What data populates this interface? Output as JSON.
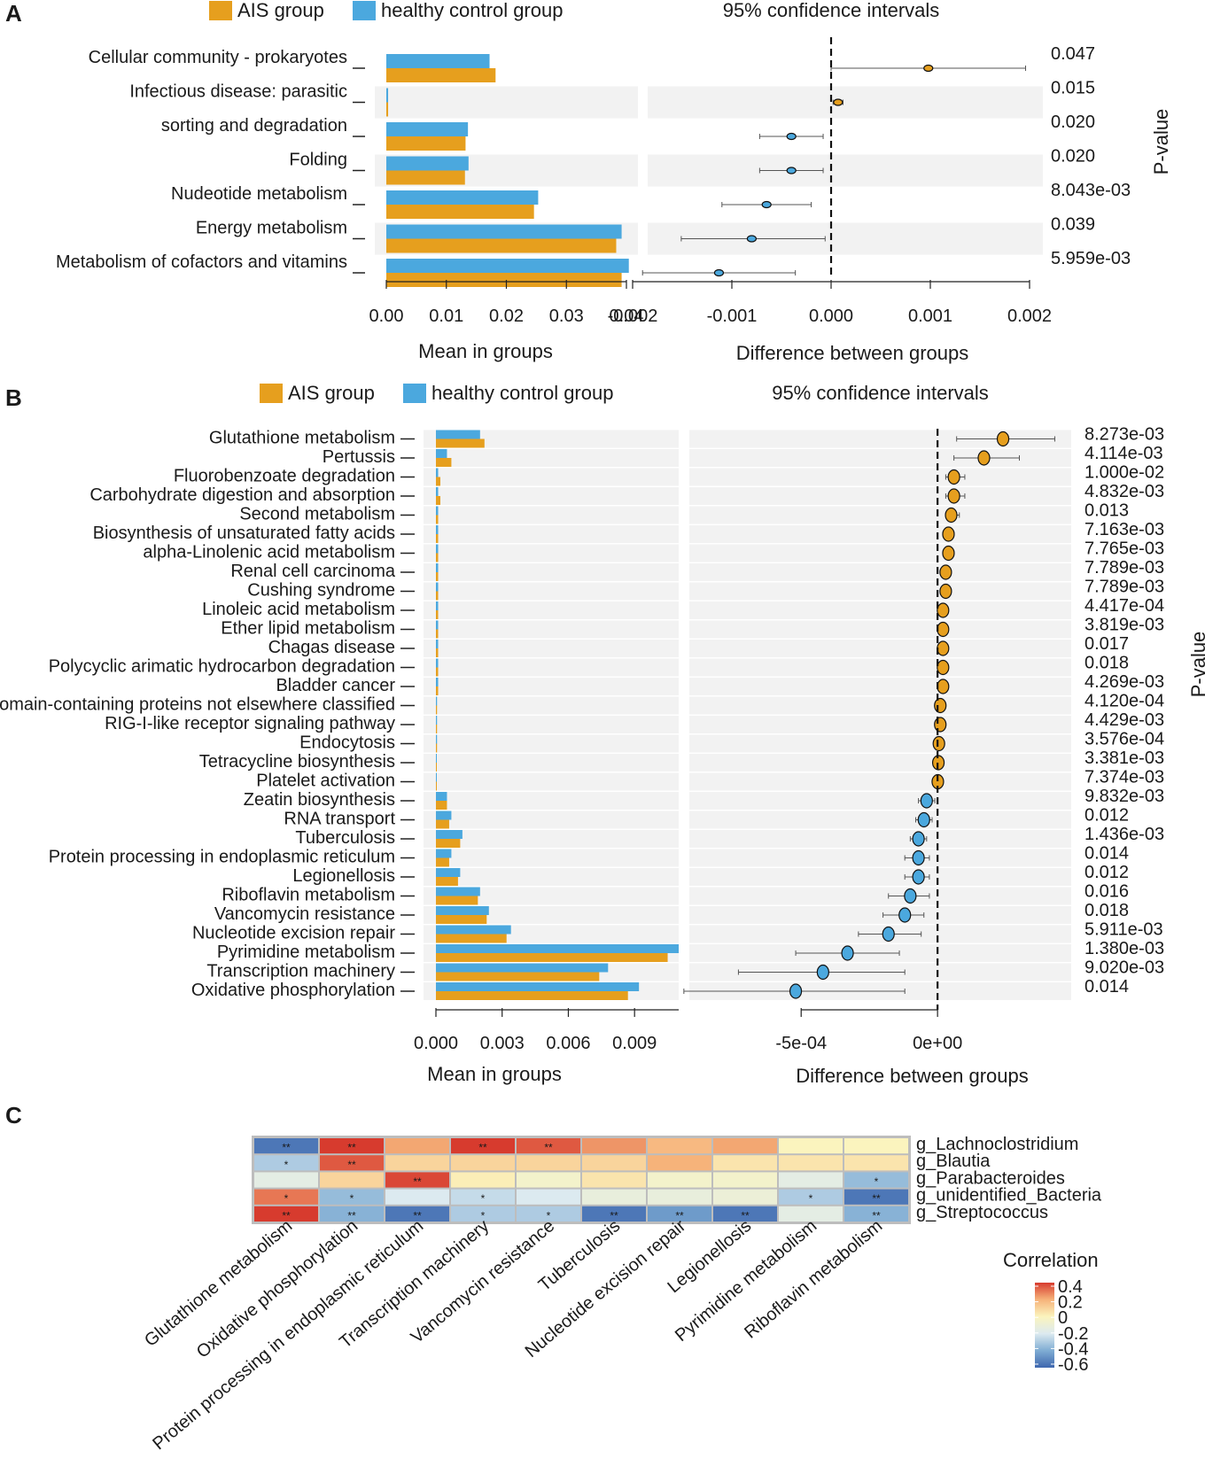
{
  "colors": {
    "ais": "#E69F1E",
    "hc": "#4BA8DE",
    "band": "#F2F2F2",
    "heat_scale": [
      "#3D66AE",
      "#7FACD3",
      "#DCEAF0",
      "#FBF4BE",
      "#F6B37A",
      "#D73B2E"
    ]
  },
  "panels": {
    "a": {
      "letter": "A"
    },
    "b": {
      "letter": "B"
    },
    "c": {
      "letter": "C"
    }
  },
  "chart_data": [
    {
      "id": "A",
      "type": "bar",
      "title": "95% confidence intervals",
      "legend": [
        "AIS group",
        "healthy control group"
      ],
      "legend_position": "top-left",
      "categories": [
        "Cellular community - prokaryotes",
        "Infectious disease: parasitic",
        "sorting and degradation",
        "Folding",
        "Nudeotide metabolism",
        "Energy metabolism",
        "Metabolism of cofactors and vitamins"
      ],
      "series": [
        {
          "name": "healthy control group",
          "values": [
            0.0172,
            0.0003,
            0.0136,
            0.0137,
            0.0253,
            0.0392,
            0.0404
          ]
        },
        {
          "name": "AIS group",
          "values": [
            0.0182,
            0.0003,
            0.0132,
            0.0131,
            0.0246,
            0.0383,
            0.0392
          ]
        }
      ],
      "xlabel": "Mean in groups",
      "xlim": [
        0,
        0.04
      ],
      "xticks": [
        "0.00",
        "0.01",
        "0.02",
        "0.03",
        "0.04"
      ],
      "diff": {
        "values": [
          0.00098,
          7e-05,
          -0.0004,
          -0.0004,
          -0.00065,
          -0.0008,
          -0.00113
        ],
        "lower": [
          0.0,
          2e-05,
          -0.00072,
          -0.00072,
          -0.0011,
          -0.00151,
          -0.0019
        ],
        "upper": [
          0.00196,
          0.00012,
          -8e-05,
          -8e-05,
          -0.0002,
          -6e-05,
          -0.00036
        ],
        "xlabel": "Difference between groups",
        "xlim": [
          -0.002,
          0.002
        ],
        "ticks": [
          -0.002,
          -0.001,
          0,
          0.001,
          0.002
        ],
        "tick_labels": [
          "-0.002",
          "-0.001",
          "0.000",
          "0.001",
          "0.002"
        ]
      },
      "p_values": [
        "0.047",
        "0.015",
        "0.020",
        "0.020",
        "8.043e-03",
        "0.039",
        "5.959e-03"
      ],
      "p_label": "P-value"
    },
    {
      "id": "B",
      "type": "bar",
      "title": "95% confidence intervals",
      "legend": [
        "AIS group",
        "healthy control group"
      ],
      "legend_position": "top-left",
      "categories": [
        "Glutathione metabolism",
        "Pertussis",
        "Fluorobenzoate degradation",
        "Carbohydrate digestion and absorption",
        "Second metabolism",
        "Biosynthesis of unsaturated fatty acids",
        "alpha-Linolenic acid metabolism",
        "Renal cell carcinoma",
        "Cushing syndrome",
        "Linoleic acid metabolism",
        "Ether lipid metabolism",
        "Chagas disease",
        "Polycyclic arimatic hydrocarbon degradation",
        "Bladder cancer",
        "Domain-containing proteins not elsewhere classified",
        "RIG-I-like receptor signaling pathway",
        "Endocytosis",
        "Tetracycline biosynthesis",
        "Platelet activation",
        "Zeatin biosynthesis",
        "RNA transport",
        "Tuberculosis",
        "Protein processing in endoplasmic reticulum",
        "Legionellosis",
        "Riboflavin metabolism",
        "Vancomycin resistance",
        "Nucleotide excision repair",
        "Pyrimidine metabolism",
        "Transcription machinery",
        "Oxidative phosphorylation"
      ],
      "series": [
        {
          "name": "healthy control group",
          "values": [
            0.002,
            0.0005,
            0.0001,
            0.0001,
            0.0001,
            0.0001,
            0.0001,
            0.0001,
            0.0001,
            0.0001,
            0.0001,
            0.0001,
            0.0001,
            0.0001,
            5e-05,
            5e-05,
            5e-05,
            3e-05,
            2e-05,
            0.0005,
            0.0007,
            0.0012,
            0.0007,
            0.0011,
            0.002,
            0.0024,
            0.0034,
            0.011,
            0.0078,
            0.0092
          ]
        },
        {
          "name": "AIS group",
          "values": [
            0.0022,
            0.0007,
            0.0002,
            0.0002,
            0.0001,
            0.0001,
            0.0001,
            0.0001,
            0.0001,
            0.0001,
            0.0001,
            0.0001,
            0.0001,
            0.0001,
            5e-05,
            5e-05,
            5e-05,
            3e-05,
            2e-05,
            0.0005,
            0.0006,
            0.0011,
            0.0006,
            0.001,
            0.0019,
            0.0023,
            0.0032,
            0.0105,
            0.0074,
            0.0087
          ]
        }
      ],
      "xlabel": "Mean in groups",
      "xlim": [
        0,
        0.011
      ],
      "xticks": [
        "0.000",
        "0.003",
        "0.006",
        "0.009"
      ],
      "diff": {
        "values": [
          0.00024,
          0.00017,
          6e-05,
          6e-05,
          5e-05,
          4e-05,
          4e-05,
          3e-05,
          3e-05,
          2e-05,
          2e-05,
          2e-05,
          2e-05,
          2e-05,
          1e-05,
          1e-05,
          5e-06,
          3e-06,
          1e-06,
          -4e-05,
          -5e-05,
          -7e-05,
          -7e-05,
          -7e-05,
          -0.0001,
          -0.00012,
          -0.00018,
          -0.00033,
          -0.00042,
          -0.00052
        ],
        "lower": [
          7e-05,
          6e-05,
          3e-05,
          3e-05,
          3e-05,
          2e-05,
          2e-05,
          1e-05,
          1e-05,
          1e-05,
          1e-05,
          1e-05,
          1e-05,
          1e-05,
          5e-06,
          5e-06,
          2e-06,
          1e-06,
          0.0,
          -7e-05,
          -8e-05,
          -0.0001,
          -0.00012,
          -0.00012,
          -0.00018,
          -0.0002,
          -0.00029,
          -0.00052,
          -0.00073,
          -0.00093
        ],
        "upper": [
          0.00043,
          0.0003,
          0.0001,
          0.0001,
          8e-05,
          6e-05,
          6e-05,
          5e-05,
          5e-05,
          4e-05,
          4e-05,
          4e-05,
          4e-05,
          3e-05,
          2e-05,
          2e-05,
          1e-05,
          5e-06,
          3e-06,
          -1e-05,
          -2e-05,
          -4e-05,
          -3e-05,
          -3e-05,
          -3e-05,
          -5e-05,
          -6e-05,
          -0.00014,
          -0.00012,
          -0.00012
        ],
        "xlabel": "Difference between groups",
        "xlim": [
          -0.00091,
          0.00049
        ],
        "ticks": [
          -0.0005,
          0
        ],
        "tick_labels": [
          "-5e-04",
          "0e+00"
        ]
      },
      "p_values": [
        "8.273e-03",
        "4.114e-03",
        "1.000e-02",
        "4.832e-03",
        "0.013",
        "7.163e-03",
        "7.765e-03",
        "7.789e-03",
        "7.789e-03",
        "4.417e-04",
        "3.819e-03",
        "0.017",
        "0.018",
        "4.269e-03",
        "4.120e-04",
        "4.429e-03",
        "3.576e-04",
        "3.381e-03",
        "7.374e-03",
        "9.832e-03",
        "0.012",
        "1.436e-03",
        "0.014",
        "0.012",
        "0.016",
        "0.018",
        "5.911e-03",
        "1.380e-03",
        "9.020e-03",
        "0.014"
      ],
      "p_label": "P-value"
    },
    {
      "id": "C",
      "type": "heatmap",
      "x_labels": [
        "Glutathione metabolism",
        "Oxidative phosphorylation",
        "Protein processing in endoplasmic reticulum",
        "Transcription machinery",
        "Vancomycin resistance",
        "Tuberculosis",
        "Nucleotide excision repair",
        "Legionellosis",
        "Pyrimidine metabolism",
        "Riboflavin metabolism"
      ],
      "y_labels": [
        "g_Lachnoclostridium",
        "g_Blautia",
        "g_Parabacteroides",
        "g_unidentified_Bacteria",
        "g_Streptococcus"
      ],
      "values": [
        [
          -0.55,
          0.42,
          0.22,
          0.42,
          0.35,
          0.25,
          0.18,
          0.22,
          0.0,
          0.0
        ],
        [
          -0.3,
          0.35,
          0.1,
          0.1,
          0.1,
          0.1,
          0.2,
          0.05,
          0.05,
          0.05
        ],
        [
          -0.15,
          0.1,
          0.38,
          0.02,
          -0.05,
          0.05,
          -0.05,
          -0.05,
          -0.15,
          -0.35
        ],
        [
          0.3,
          -0.35,
          -0.2,
          -0.25,
          -0.2,
          -0.12,
          -0.12,
          -0.1,
          -0.3,
          -0.55
        ],
        [
          0.4,
          -0.38,
          -0.55,
          -0.3,
          -0.3,
          -0.55,
          -0.45,
          -0.55,
          -0.15,
          -0.38
        ]
      ],
      "stars": [
        [
          "**",
          "**",
          "",
          "**",
          "**",
          "",
          "",
          "",
          "",
          ""
        ],
        [
          "*",
          "**",
          "",
          "",
          "",
          "",
          "",
          "",
          "",
          ""
        ],
        [
          "",
          "",
          "**",
          "",
          "",
          "",
          "",
          "",
          "",
          "*"
        ],
        [
          "*",
          "*",
          "",
          "*",
          "",
          "",
          "",
          "",
          "*",
          "**"
        ],
        [
          "**",
          "**",
          "**",
          "*",
          "*",
          "**",
          "**",
          "**",
          "",
          "**"
        ]
      ],
      "legend_title": "Correlation",
      "legend_ticks": [
        "0.4",
        "0.2",
        "0",
        "-0.2",
        "-0.4",
        "-0.6"
      ],
      "zlim": [
        -0.6,
        0.4
      ]
    }
  ]
}
